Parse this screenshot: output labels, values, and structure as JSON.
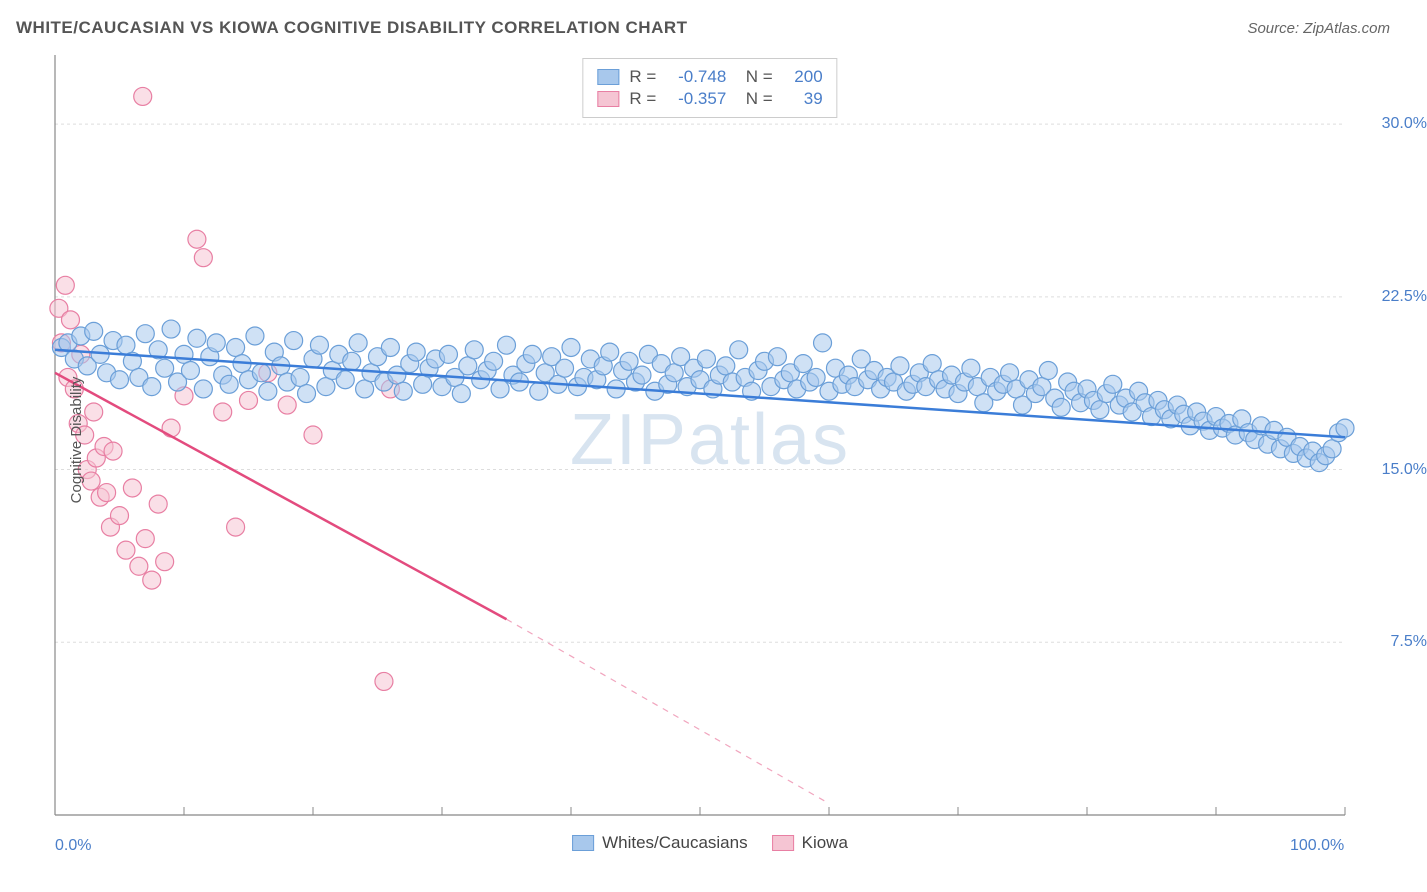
{
  "title": "WHITE/CAUCASIAN VS KIOWA COGNITIVE DISABILITY CORRELATION CHART",
  "source": "Source: ZipAtlas.com",
  "watermark": "ZIPatlas",
  "ylabel": "Cognitive Disability",
  "chart": {
    "type": "scatter",
    "background_color": "#ffffff",
    "grid_color": "#dddddd",
    "axis_color": "#888888",
    "xlim": [
      0,
      100
    ],
    "ylim": [
      0,
      33
    ],
    "xticks": [
      0,
      10,
      20,
      30,
      40,
      50,
      60,
      70,
      80,
      90,
      100
    ],
    "xtick_labels": {
      "0": "0.0%",
      "100": "100.0%"
    },
    "yticks": [
      7.5,
      15.0,
      22.5,
      30.0
    ],
    "ytick_labels": [
      "7.5%",
      "15.0%",
      "22.5%",
      "30.0%"
    ],
    "series": [
      {
        "name": "Whites/Caucasians",
        "color_fill": "#a8c8ec",
        "color_stroke": "#6b9fd8",
        "trend_color": "#3b7dd8",
        "marker_radius": 9,
        "fill_opacity": 0.55,
        "R": "-0.748",
        "N": "200",
        "trend": {
          "x1": 0,
          "y1": 20.2,
          "x2": 100,
          "y2": 16.4
        },
        "points": [
          [
            0.5,
            20.3
          ],
          [
            1,
            20.5
          ],
          [
            1.5,
            19.8
          ],
          [
            2,
            20.8
          ],
          [
            2.5,
            19.5
          ],
          [
            3,
            21.0
          ],
          [
            3.5,
            20.0
          ],
          [
            4,
            19.2
          ],
          [
            4.5,
            20.6
          ],
          [
            5,
            18.9
          ],
          [
            5.5,
            20.4
          ],
          [
            6,
            19.7
          ],
          [
            6.5,
            19.0
          ],
          [
            7,
            20.9
          ],
          [
            7.5,
            18.6
          ],
          [
            8,
            20.2
          ],
          [
            8.5,
            19.4
          ],
          [
            9,
            21.1
          ],
          [
            9.5,
            18.8
          ],
          [
            10,
            20.0
          ],
          [
            10.5,
            19.3
          ],
          [
            11,
            20.7
          ],
          [
            11.5,
            18.5
          ],
          [
            12,
            19.9
          ],
          [
            12.5,
            20.5
          ],
          [
            13,
            19.1
          ],
          [
            13.5,
            18.7
          ],
          [
            14,
            20.3
          ],
          [
            14.5,
            19.6
          ],
          [
            15,
            18.9
          ],
          [
            15.5,
            20.8
          ],
          [
            16,
            19.2
          ],
          [
            16.5,
            18.4
          ],
          [
            17,
            20.1
          ],
          [
            17.5,
            19.5
          ],
          [
            18,
            18.8
          ],
          [
            18.5,
            20.6
          ],
          [
            19,
            19.0
          ],
          [
            19.5,
            18.3
          ],
          [
            20,
            19.8
          ],
          [
            20.5,
            20.4
          ],
          [
            21,
            18.6
          ],
          [
            21.5,
            19.3
          ],
          [
            22,
            20.0
          ],
          [
            22.5,
            18.9
          ],
          [
            23,
            19.7
          ],
          [
            23.5,
            20.5
          ],
          [
            24,
            18.5
          ],
          [
            24.5,
            19.2
          ],
          [
            25,
            19.9
          ],
          [
            25.5,
            18.8
          ],
          [
            26,
            20.3
          ],
          [
            26.5,
            19.1
          ],
          [
            27,
            18.4
          ],
          [
            27.5,
            19.6
          ],
          [
            28,
            20.1
          ],
          [
            28.5,
            18.7
          ],
          [
            29,
            19.4
          ],
          [
            29.5,
            19.8
          ],
          [
            30,
            18.6
          ],
          [
            30.5,
            20.0
          ],
          [
            31,
            19.0
          ],
          [
            31.5,
            18.3
          ],
          [
            32,
            19.5
          ],
          [
            32.5,
            20.2
          ],
          [
            33,
            18.9
          ],
          [
            33.5,
            19.3
          ],
          [
            34,
            19.7
          ],
          [
            34.5,
            18.5
          ],
          [
            35,
            20.4
          ],
          [
            35.5,
            19.1
          ],
          [
            36,
            18.8
          ],
          [
            36.5,
            19.6
          ],
          [
            37,
            20.0
          ],
          [
            37.5,
            18.4
          ],
          [
            38,
            19.2
          ],
          [
            38.5,
            19.9
          ],
          [
            39,
            18.7
          ],
          [
            39.5,
            19.4
          ],
          [
            40,
            20.3
          ],
          [
            40.5,
            18.6
          ],
          [
            41,
            19.0
          ],
          [
            41.5,
            19.8
          ],
          [
            42,
            18.9
          ],
          [
            42.5,
            19.5
          ],
          [
            43,
            20.1
          ],
          [
            43.5,
            18.5
          ],
          [
            44,
            19.3
          ],
          [
            44.5,
            19.7
          ],
          [
            45,
            18.8
          ],
          [
            45.5,
            19.1
          ],
          [
            46,
            20.0
          ],
          [
            46.5,
            18.4
          ],
          [
            47,
            19.6
          ],
          [
            47.5,
            18.7
          ],
          [
            48,
            19.2
          ],
          [
            48.5,
            19.9
          ],
          [
            49,
            18.6
          ],
          [
            49.5,
            19.4
          ],
          [
            50,
            18.9
          ],
          [
            50.5,
            19.8
          ],
          [
            51,
            18.5
          ],
          [
            51.5,
            19.1
          ],
          [
            52,
            19.5
          ],
          [
            52.5,
            18.8
          ],
          [
            53,
            20.2
          ],
          [
            53.5,
            19.0
          ],
          [
            54,
            18.4
          ],
          [
            54.5,
            19.3
          ],
          [
            55,
            19.7
          ],
          [
            55.5,
            18.6
          ],
          [
            56,
            19.9
          ],
          [
            56.5,
            18.9
          ],
          [
            57,
            19.2
          ],
          [
            57.5,
            18.5
          ],
          [
            58,
            19.6
          ],
          [
            58.5,
            18.8
          ],
          [
            59,
            19.0
          ],
          [
            59.5,
            20.5
          ],
          [
            60,
            18.4
          ],
          [
            60.5,
            19.4
          ],
          [
            61,
            18.7
          ],
          [
            61.5,
            19.1
          ],
          [
            62,
            18.6
          ],
          [
            62.5,
            19.8
          ],
          [
            63,
            18.9
          ],
          [
            63.5,
            19.3
          ],
          [
            64,
            18.5
          ],
          [
            64.5,
            19.0
          ],
          [
            65,
            18.8
          ],
          [
            65.5,
            19.5
          ],
          [
            66,
            18.4
          ],
          [
            66.5,
            18.7
          ],
          [
            67,
            19.2
          ],
          [
            67.5,
            18.6
          ],
          [
            68,
            19.6
          ],
          [
            68.5,
            18.9
          ],
          [
            69,
            18.5
          ],
          [
            69.5,
            19.1
          ],
          [
            70,
            18.3
          ],
          [
            70.5,
            18.8
          ],
          [
            71,
            19.4
          ],
          [
            71.5,
            18.6
          ],
          [
            72,
            17.9
          ],
          [
            72.5,
            19.0
          ],
          [
            73,
            18.4
          ],
          [
            73.5,
            18.7
          ],
          [
            74,
            19.2
          ],
          [
            74.5,
            18.5
          ],
          [
            75,
            17.8
          ],
          [
            75.5,
            18.9
          ],
          [
            76,
            18.3
          ],
          [
            76.5,
            18.6
          ],
          [
            77,
            19.3
          ],
          [
            77.5,
            18.1
          ],
          [
            78,
            17.7
          ],
          [
            78.5,
            18.8
          ],
          [
            79,
            18.4
          ],
          [
            79.5,
            17.9
          ],
          [
            80,
            18.5
          ],
          [
            80.5,
            18.0
          ],
          [
            81,
            17.6
          ],
          [
            81.5,
            18.3
          ],
          [
            82,
            18.7
          ],
          [
            82.5,
            17.8
          ],
          [
            83,
            18.1
          ],
          [
            83.5,
            17.5
          ],
          [
            84,
            18.4
          ],
          [
            84.5,
            17.9
          ],
          [
            85,
            17.3
          ],
          [
            85.5,
            18.0
          ],
          [
            86,
            17.6
          ],
          [
            86.5,
            17.2
          ],
          [
            87,
            17.8
          ],
          [
            87.5,
            17.4
          ],
          [
            88,
            16.9
          ],
          [
            88.5,
            17.5
          ],
          [
            89,
            17.1
          ],
          [
            89.5,
            16.7
          ],
          [
            90,
            17.3
          ],
          [
            90.5,
            16.8
          ],
          [
            91,
            17.0
          ],
          [
            91.5,
            16.5
          ],
          [
            92,
            17.2
          ],
          [
            92.5,
            16.6
          ],
          [
            93,
            16.3
          ],
          [
            93.5,
            16.9
          ],
          [
            94,
            16.1
          ],
          [
            94.5,
            16.7
          ],
          [
            95,
            15.9
          ],
          [
            95.5,
            16.4
          ],
          [
            96,
            15.7
          ],
          [
            96.5,
            16.0
          ],
          [
            97,
            15.5
          ],
          [
            97.5,
            15.8
          ],
          [
            98,
            15.3
          ],
          [
            98.5,
            15.6
          ],
          [
            99,
            15.9
          ],
          [
            99.5,
            16.6
          ],
          [
            100,
            16.8
          ]
        ]
      },
      {
        "name": "Kiowa",
        "color_fill": "#f5c5d3",
        "color_stroke": "#e87fa3",
        "trend_color": "#e34b7e",
        "marker_radius": 9,
        "fill_opacity": 0.55,
        "R": "-0.357",
        "N": "39",
        "trend": {
          "x1": 0,
          "y1": 19.2,
          "x2": 35,
          "y2": 8.5,
          "dash_to_x": 60,
          "dash_to_y": 0.5
        },
        "points": [
          [
            0.3,
            22.0
          ],
          [
            0.5,
            20.5
          ],
          [
            0.8,
            23.0
          ],
          [
            1.0,
            19.0
          ],
          [
            1.2,
            21.5
          ],
          [
            1.5,
            18.5
          ],
          [
            1.8,
            17.0
          ],
          [
            2.0,
            20.0
          ],
          [
            2.3,
            16.5
          ],
          [
            2.5,
            15.0
          ],
          [
            2.8,
            14.5
          ],
          [
            3.0,
            17.5
          ],
          [
            3.2,
            15.5
          ],
          [
            3.5,
            13.8
          ],
          [
            3.8,
            16.0
          ],
          [
            4.0,
            14.0
          ],
          [
            4.3,
            12.5
          ],
          [
            4.5,
            15.8
          ],
          [
            5.0,
            13.0
          ],
          [
            5.5,
            11.5
          ],
          [
            6.0,
            14.2
          ],
          [
            6.5,
            10.8
          ],
          [
            7.0,
            12.0
          ],
          [
            7.5,
            10.2
          ],
          [
            6.8,
            31.2
          ],
          [
            8.0,
            13.5
          ],
          [
            8.5,
            11.0
          ],
          [
            9.0,
            16.8
          ],
          [
            10.0,
            18.2
          ],
          [
            11.0,
            25.0
          ],
          [
            11.5,
            24.2
          ],
          [
            13.0,
            17.5
          ],
          [
            14.0,
            12.5
          ],
          [
            15.0,
            18.0
          ],
          [
            16.5,
            19.2
          ],
          [
            18.0,
            17.8
          ],
          [
            20.0,
            16.5
          ],
          [
            26.0,
            18.5
          ],
          [
            25.5,
            5.8
          ]
        ]
      }
    ]
  },
  "legend_bottom": [
    {
      "label": "Whites/Caucasians",
      "fill": "#a8c8ec",
      "stroke": "#6b9fd8"
    },
    {
      "label": "Kiowa",
      "fill": "#f5c5d3",
      "stroke": "#e87fa3"
    }
  ]
}
